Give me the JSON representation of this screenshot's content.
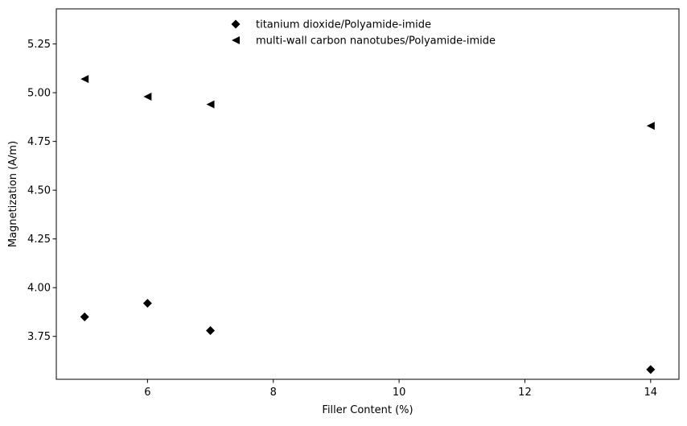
{
  "chart_data": {
    "type": "scatter",
    "title": "",
    "xlabel": "Filler Content (%)",
    "ylabel": "Magnetization (A/m)",
    "xlim": [
      4.55,
      14.45
    ],
    "ylim": [
      3.53,
      5.43
    ],
    "xticks": [
      6,
      8,
      10,
      12,
      14
    ],
    "xtick_labels": [
      "6",
      "8",
      "10",
      "12",
      "14"
    ],
    "yticks": [
      3.75,
      4.0,
      4.25,
      4.5,
      4.75,
      5.0,
      5.25
    ],
    "ytick_labels": [
      "3.75",
      "4.00",
      "4.25",
      "4.50",
      "4.75",
      "5.00",
      "5.25"
    ],
    "grid": false,
    "legend_position": "top-center",
    "series": [
      {
        "name": "titanium dioxide/Polyamide-imide",
        "marker": "diamond",
        "color": "#000000",
        "x": [
          5,
          6,
          7,
          14
        ],
        "y": [
          3.85,
          3.92,
          3.78,
          3.58
        ]
      },
      {
        "name": "multi-wall carbon nanotubes/Polyamide-imide",
        "marker": "triangle-left",
        "color": "#000000",
        "x": [
          5,
          6,
          7,
          14
        ],
        "y": [
          5.07,
          4.98,
          4.94,
          4.83
        ]
      }
    ]
  }
}
